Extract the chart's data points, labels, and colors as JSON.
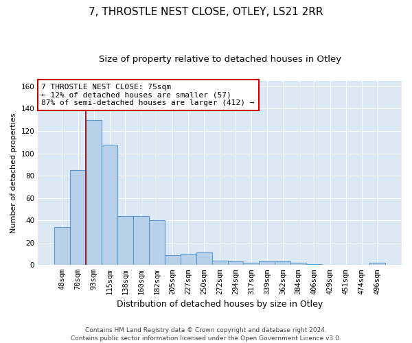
{
  "title": "7, THROSTLE NEST CLOSE, OTLEY, LS21 2RR",
  "subtitle": "Size of property relative to detached houses in Otley",
  "xlabel": "Distribution of detached houses by size in Otley",
  "ylabel": "Number of detached properties",
  "categories": [
    "48sqm",
    "70sqm",
    "93sqm",
    "115sqm",
    "138sqm",
    "160sqm",
    "182sqm",
    "205sqm",
    "227sqm",
    "250sqm",
    "272sqm",
    "294sqm",
    "317sqm",
    "339sqm",
    "362sqm",
    "384sqm",
    "406sqm",
    "429sqm",
    "451sqm",
    "474sqm",
    "496sqm"
  ],
  "values": [
    34,
    85,
    130,
    108,
    44,
    44,
    40,
    9,
    10,
    11,
    4,
    3,
    2,
    3,
    3,
    2,
    1,
    0,
    0,
    0,
    2
  ],
  "bar_color": "#b8d0ea",
  "bar_edge_color": "#5b9bd5",
  "bar_edge_width": 0.8,
  "property_line_x": 0.5,
  "property_line_color": "#8b0000",
  "annotation_line1": "7 THROSTLE NEST CLOSE: 75sqm",
  "annotation_line2": "← 12% of detached houses are smaller (57)",
  "annotation_line3": "87% of semi-detached houses are larger (412) →",
  "annotation_box_color": "#ffffff",
  "annotation_box_edge": "#cc0000",
  "ylim": [
    0,
    165
  ],
  "yticks": [
    0,
    20,
    40,
    60,
    80,
    100,
    120,
    140,
    160
  ],
  "background_color": "#dce9f5",
  "grid_color": "#ffffff",
  "footer": "Contains HM Land Registry data © Crown copyright and database right 2024.\nContains public sector information licensed under the Open Government Licence v3.0.",
  "title_fontsize": 11,
  "subtitle_fontsize": 9.5,
  "xlabel_fontsize": 9,
  "ylabel_fontsize": 8,
  "tick_fontsize": 7.5,
  "annotation_fontsize": 8,
  "footer_fontsize": 6.5
}
